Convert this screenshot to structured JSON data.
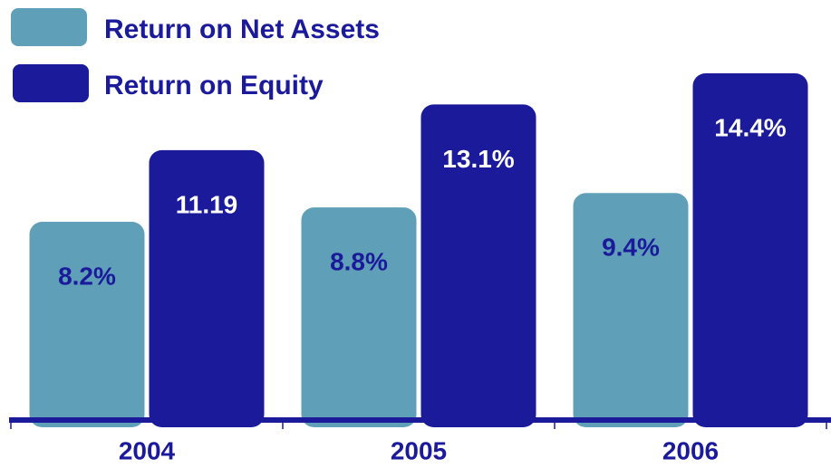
{
  "chart_data": {
    "type": "bar",
    "categories": [
      "2004",
      "2005",
      "2006"
    ],
    "series": [
      {
        "name": "Return on Net Assets",
        "color": "#5fa0b8",
        "values": [
          8.2,
          8.8,
          9.4
        ],
        "value_labels": [
          "8.2%",
          "8.8%",
          "9.4%"
        ]
      },
      {
        "name": "Return on Equity",
        "color": "#1a1a9a",
        "values": [
          11.19,
          13.1,
          14.4
        ],
        "value_labels": [
          "11.19",
          "13.1%",
          "14.4%"
        ]
      }
    ]
  }
}
